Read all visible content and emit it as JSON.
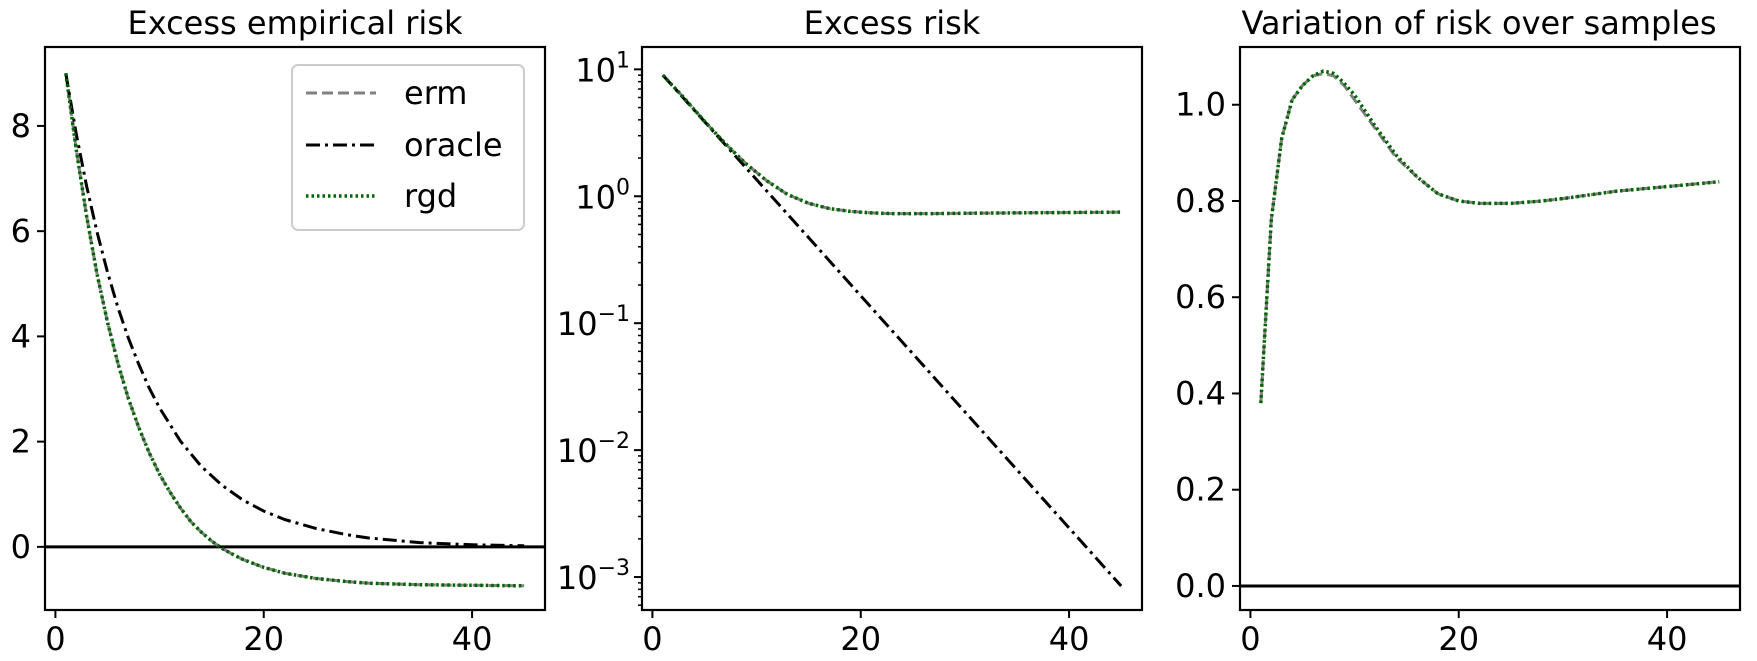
{
  "colors": {
    "erm": "#808080",
    "oracle": "#000000",
    "rgd": "#006400",
    "zero_line": "#000000"
  },
  "chart_data": [
    {
      "type": "line",
      "title": "Excess empirical risk",
      "xlabel": "",
      "ylabel": "",
      "xlim": [
        -1,
        47
      ],
      "ylim": [
        -1.2,
        9.5
      ],
      "xticks": [
        0,
        20,
        40
      ],
      "yticks": [
        0,
        2,
        4,
        6,
        8
      ],
      "hline": 0,
      "legend": {
        "position": "upper right",
        "entries": [
          "erm",
          "oracle",
          "rgd"
        ]
      },
      "series": [
        {
          "name": "erm",
          "style": "dashed",
          "x": [
            1,
            2,
            3,
            4,
            5,
            6,
            7,
            8,
            9,
            10,
            11,
            12,
            13,
            14,
            15,
            16,
            17,
            18,
            20,
            22,
            25,
            28,
            30,
            35,
            40,
            45
          ],
          "y": [
            9.0,
            7.55,
            6.28,
            5.18,
            4.27,
            3.49,
            2.82,
            2.27,
            1.79,
            1.38,
            1.04,
            0.74,
            0.48,
            0.28,
            0.11,
            -0.03,
            -0.14,
            -0.24,
            -0.39,
            -0.5,
            -0.6,
            -0.66,
            -0.69,
            -0.72,
            -0.73,
            -0.74
          ]
        },
        {
          "name": "oracle",
          "style": "dashdot",
          "x": [
            1,
            2,
            3,
            4,
            5,
            6,
            7,
            8,
            9,
            10,
            12,
            14,
            16,
            18,
            20,
            22,
            25,
            28,
            30,
            35,
            40,
            45
          ],
          "y": [
            9.0,
            7.85,
            6.85,
            5.98,
            5.22,
            4.55,
            3.97,
            3.47,
            3.02,
            2.64,
            2.01,
            1.53,
            1.17,
            0.89,
            0.68,
            0.52,
            0.35,
            0.23,
            0.17,
            0.08,
            0.04,
            0.02
          ]
        },
        {
          "name": "rgd",
          "style": "dotted",
          "x": [
            1,
            2,
            3,
            4,
            5,
            6,
            7,
            8,
            9,
            10,
            11,
            12,
            13,
            14,
            15,
            16,
            17,
            18,
            20,
            22,
            25,
            28,
            30,
            35,
            40,
            45
          ],
          "y": [
            9.0,
            7.55,
            6.28,
            5.18,
            4.27,
            3.49,
            2.82,
            2.27,
            1.79,
            1.38,
            1.04,
            0.74,
            0.48,
            0.28,
            0.11,
            -0.03,
            -0.14,
            -0.24,
            -0.39,
            -0.5,
            -0.6,
            -0.66,
            -0.69,
            -0.72,
            -0.73,
            -0.74
          ]
        }
      ]
    },
    {
      "type": "line",
      "title": "Excess risk",
      "xlabel": "",
      "ylabel": "",
      "yscale": "log",
      "xlim": [
        -1,
        47
      ],
      "ylim": [
        0.00055,
        15
      ],
      "xticks": [
        0,
        20,
        40
      ],
      "yticks": [
        0.001,
        0.01,
        0.1,
        1,
        10
      ],
      "ytick_labels": [
        {
          "base": "10",
          "exp": "−3"
        },
        {
          "base": "10",
          "exp": "−2"
        },
        {
          "base": "10",
          "exp": "−1"
        },
        {
          "base": "10",
          "exp": "0"
        },
        {
          "base": "10",
          "exp": "1"
        }
      ],
      "series": [
        {
          "name": "erm",
          "style": "dashed",
          "x": [
            1,
            3,
            5,
            7,
            9,
            11,
            13,
            15,
            17,
            19,
            21,
            23,
            25,
            27,
            30,
            35,
            40,
            45
          ],
          "y": [
            9.0,
            6.0,
            3.9,
            2.6,
            1.8,
            1.32,
            1.03,
            0.88,
            0.8,
            0.76,
            0.74,
            0.73,
            0.73,
            0.73,
            0.735,
            0.74,
            0.745,
            0.75
          ]
        },
        {
          "name": "oracle",
          "style": "dashdot",
          "x": [
            1,
            45
          ],
          "y": [
            9.0,
            0.00085
          ]
        },
        {
          "name": "rgd",
          "style": "dotted",
          "x": [
            1,
            3,
            5,
            7,
            9,
            11,
            13,
            15,
            17,
            19,
            21,
            23,
            25,
            27,
            30,
            35,
            40,
            45
          ],
          "y": [
            9.0,
            6.0,
            3.9,
            2.6,
            1.8,
            1.32,
            1.03,
            0.88,
            0.8,
            0.76,
            0.74,
            0.73,
            0.73,
            0.73,
            0.735,
            0.74,
            0.745,
            0.75
          ]
        }
      ]
    },
    {
      "type": "line",
      "title": "Variation of risk over samples",
      "xlabel": "",
      "ylabel": "",
      "xlim": [
        -1,
        47
      ],
      "ylim": [
        -0.05,
        1.12
      ],
      "xticks": [
        0,
        20,
        40
      ],
      "yticks": [
        0.0,
        0.2,
        0.4,
        0.6,
        0.8,
        1.0
      ],
      "ytick_labels": [
        "0.0",
        "0.2",
        "0.4",
        "0.6",
        "0.8",
        "1.0"
      ],
      "hline": 0,
      "series": [
        {
          "name": "erm",
          "style": "dashed",
          "x": [
            1,
            2,
            3,
            4,
            5,
            6,
            7,
            8,
            9,
            10,
            12,
            14,
            16,
            18,
            20,
            22,
            25,
            28,
            30,
            35,
            40,
            45
          ],
          "y": [
            0.38,
            0.76,
            0.93,
            1.01,
            1.04,
            1.06,
            1.065,
            1.06,
            1.04,
            1.01,
            0.95,
            0.89,
            0.85,
            0.815,
            0.8,
            0.795,
            0.795,
            0.8,
            0.805,
            0.82,
            0.83,
            0.84
          ]
        },
        {
          "name": "rgd",
          "style": "dotted",
          "x": [
            1,
            2,
            3,
            4,
            5,
            6,
            7,
            8,
            9,
            10,
            12,
            14,
            16,
            18,
            20,
            22,
            25,
            28,
            30,
            35,
            40,
            45
          ],
          "y": [
            0.38,
            0.76,
            0.93,
            1.01,
            1.04,
            1.06,
            1.07,
            1.065,
            1.045,
            1.02,
            0.955,
            0.895,
            0.85,
            0.815,
            0.8,
            0.795,
            0.795,
            0.8,
            0.805,
            0.82,
            0.83,
            0.84
          ]
        }
      ]
    }
  ]
}
